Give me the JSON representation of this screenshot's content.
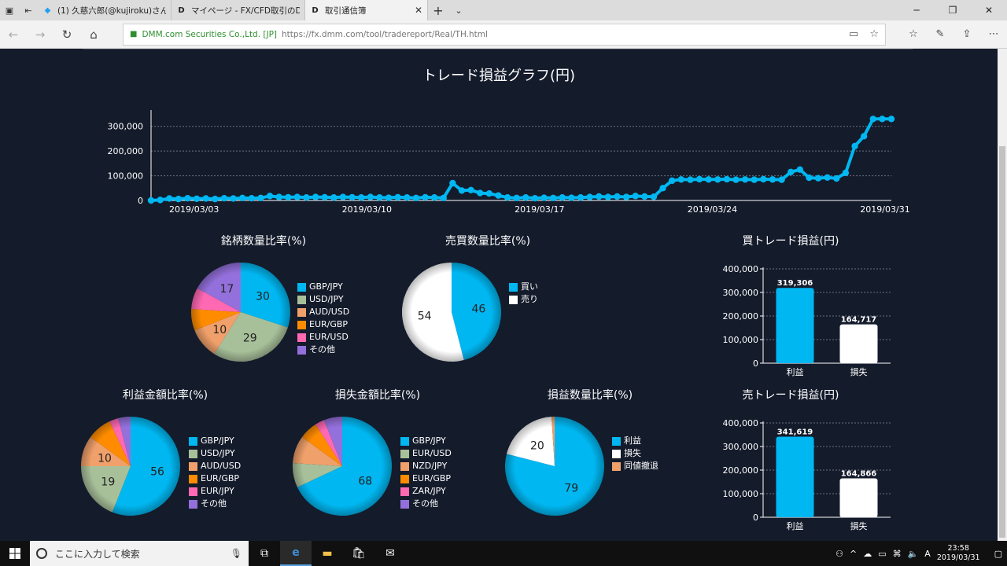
{
  "browser": {
    "tabs": [
      {
        "title": "(1) 久慈六郎(@kujiroku)さん",
        "icon": "twitter-icon"
      },
      {
        "title": "マイページ - FX/CFD取引のDMM",
        "icon": "dmm-icon"
      },
      {
        "title": "取引通信簿",
        "icon": "dmm-icon",
        "active": true
      }
    ],
    "cert": "DMM.com Securities Co.,Ltd. [JP]",
    "url": "https://fx.dmm.com/tool/tradereport/Real/TH.html"
  },
  "line_title": "トレード損益グラフ(円)",
  "pies": {
    "meigara": {
      "title": "銘柄数量比率(%)",
      "legend": [
        "GBP/JPY",
        "USD/JPY",
        "AUD/USD",
        "EUR/GBP",
        "EUR/USD",
        "その他"
      ]
    },
    "baibai": {
      "title": "売買数量比率(%)",
      "legend": [
        "買い",
        "売り"
      ]
    },
    "rieki": {
      "title": "利益金額比率(%)",
      "legend": [
        "GBP/JPY",
        "USD/JPY",
        "AUD/USD",
        "EUR/GBP",
        "EUR/JPY",
        "その他"
      ]
    },
    "sonshitsu": {
      "title": "損失金額比率(%)",
      "legend": [
        "GBP/JPY",
        "EUR/USD",
        "NZD/JPY",
        "EUR/GBP",
        "ZAR/JPY",
        "その他"
      ]
    },
    "soneki": {
      "title": "損益数量比率(%)",
      "legend": [
        "利益",
        "損失",
        "同値撤退"
      ]
    }
  },
  "bars": {
    "buy": {
      "title": "買トレード損益(円)"
    },
    "sell": {
      "title": "売トレード損益(円)"
    }
  },
  "taskbar": {
    "search_placeholder": "ここに入力して検索",
    "time": "23:58",
    "date": "2019/03/31"
  },
  "chart_data": [
    {
      "type": "line",
      "title": "トレード損益グラフ(円)",
      "x_ticks": [
        "2019/03/03",
        "2019/03/10",
        "2019/03/17",
        "2019/03/24",
        "2019/03/31"
      ],
      "y_ticks": [
        "0",
        "100,000",
        "200,000",
        "300,000"
      ],
      "ylim": [
        0,
        350000
      ],
      "xlim": [
        "2019/03/01",
        "2019/03/31"
      ],
      "color": "#00b7f1",
      "grid": true,
      "series": [
        {
          "values": [
            0,
            2000,
            8000,
            6000,
            9000,
            7000,
            8000,
            6000,
            9000,
            8000,
            10000,
            9000,
            10000,
            18000,
            14000,
            13000,
            14000,
            12000,
            14000,
            13000,
            12000,
            14000,
            13000,
            12000,
            14000,
            12000,
            11000,
            13000,
            12000,
            10000,
            13000,
            12000,
            10000,
            70000,
            40000,
            42000,
            30000,
            28000,
            20000,
            12000,
            10000,
            12000,
            9000,
            11000,
            10000,
            12000,
            11000,
            12000,
            14000,
            16000,
            14000,
            16000,
            14000,
            18000,
            16000,
            15000,
            50000,
            80000,
            85000,
            84000,
            86000,
            85000,
            85000,
            86000,
            84000,
            85000,
            84000,
            86000,
            85000,
            84000,
            115000,
            125000,
            92000,
            90000,
            93000,
            89000,
            112000,
            220000,
            260000,
            330000,
            330000,
            330000
          ]
        }
      ]
    },
    {
      "type": "pie",
      "title": "銘柄数量比率(%)",
      "labels": [
        "GBP/JPY",
        "USD/JPY",
        "AUD/USD",
        "EUR/GBP",
        "EUR/USD",
        "その他"
      ],
      "values": [
        30,
        29,
        10,
        7,
        7,
        17
      ],
      "colors": [
        "#00b7f1",
        "#a8c09a",
        "#f0a06a",
        "#ff8c00",
        "#ff69b4",
        "#9370db"
      ],
      "data_labels": [
        "30",
        "29",
        "10",
        "",
        "",
        "17"
      ]
    },
    {
      "type": "pie",
      "title": "売買数量比率(%)",
      "labels": [
        "買い",
        "売り"
      ],
      "values": [
        46,
        54
      ],
      "colors": [
        "#00b7f1",
        "#ffffff"
      ],
      "data_labels": [
        "46",
        "54"
      ]
    },
    {
      "type": "pie",
      "title": "利益金額比率(%)",
      "labels": [
        "GBP/JPY",
        "USD/JPY",
        "AUD/USD",
        "EUR/GBP",
        "EUR/JPY",
        "その他"
      ],
      "values": [
        56,
        19,
        10,
        8,
        3,
        4
      ],
      "colors": [
        "#00b7f1",
        "#a8c09a",
        "#f0a06a",
        "#ff8c00",
        "#ff69b4",
        "#9370db"
      ],
      "data_labels": [
        "56",
        "19",
        "10",
        "",
        "",
        ""
      ]
    },
    {
      "type": "pie",
      "title": "損失金額比率(%)",
      "labels": [
        "GBP/JPY",
        "EUR/USD",
        "NZD/JPY",
        "EUR/GBP",
        "ZAR/JPY",
        "その他"
      ],
      "values": [
        68,
        8,
        9,
        6,
        3,
        6
      ],
      "colors": [
        "#00b7f1",
        "#a8c09a",
        "#f0a06a",
        "#ff8c00",
        "#ff69b4",
        "#9370db"
      ],
      "data_labels": [
        "68",
        "",
        "",
        "",
        "",
        ""
      ]
    },
    {
      "type": "pie",
      "title": "損益数量比率(%)",
      "labels": [
        "利益",
        "損失",
        "同値撤退"
      ],
      "values": [
        79,
        20,
        1
      ],
      "colors": [
        "#00b7f1",
        "#ffffff",
        "#f0a06a"
      ],
      "data_labels": [
        "79",
        "20",
        ""
      ]
    },
    {
      "type": "bar",
      "title": "買トレード損益(円)",
      "categories": [
        "利益",
        "損失"
      ],
      "values": [
        319306,
        164717
      ],
      "value_labels": [
        "319,306",
        "164,717"
      ],
      "colors": [
        "#00b7f1",
        "#ffffff"
      ],
      "ylim": [
        0,
        400000
      ],
      "y_ticks": [
        "0",
        "100,000",
        "200,000",
        "300,000",
        "400,000"
      ]
    },
    {
      "type": "bar",
      "title": "売トレード損益(円)",
      "categories": [
        "利益",
        "損失"
      ],
      "values": [
        341619,
        164866
      ],
      "value_labels": [
        "341,619",
        "164,866"
      ],
      "colors": [
        "#00b7f1",
        "#ffffff"
      ],
      "ylim": [
        0,
        400000
      ],
      "y_ticks": [
        "0",
        "100,000",
        "200,000",
        "300,000",
        "400,000"
      ]
    }
  ]
}
